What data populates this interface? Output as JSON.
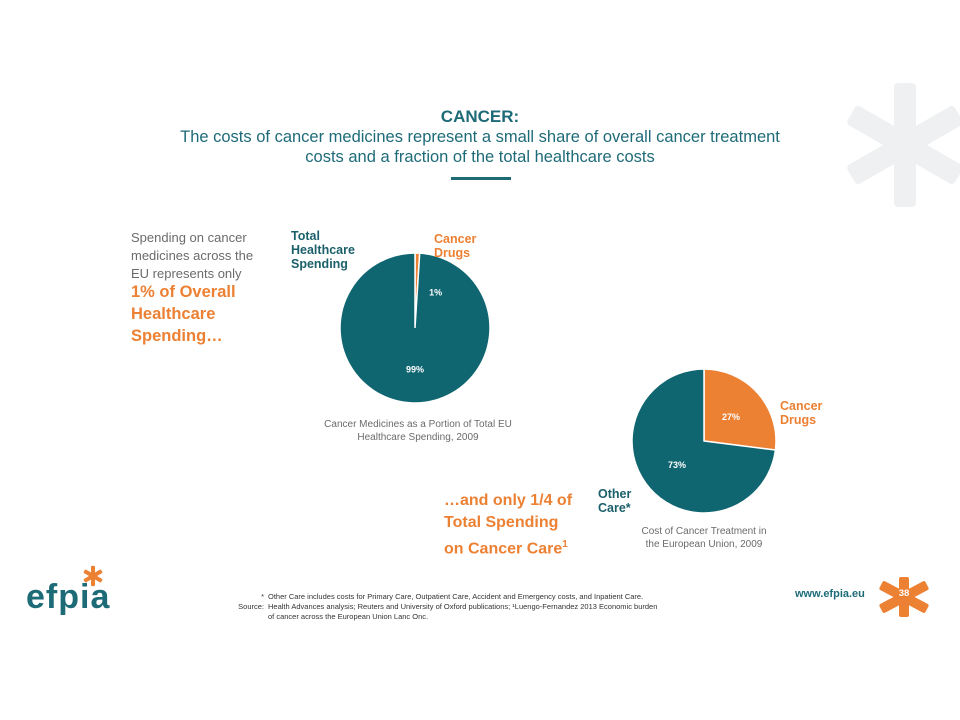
{
  "title": {
    "main": "CANCER:",
    "line1": "The costs of cancer medicines represent a small share of overall cancer treatment",
    "line2": "costs and a fraction of the total healthcare costs"
  },
  "left_text": {
    "lead1": "Spending on cancer",
    "lead2": "medicines across the",
    "lead3": "EU represents only",
    "strong1": "1% of Overall",
    "strong2": "Healthcare",
    "strong3": "Spending…"
  },
  "chart1_labels": {
    "total1": "Total",
    "total2": "Healthcare",
    "total3": "Spending",
    "drugs1": "Cancer",
    "drugs2": "Drugs"
  },
  "chart2_labels": {
    "drugs1": "Cancer",
    "drugs2": "Drugs",
    "other1": "Other",
    "other2": "Care*"
  },
  "callout2": {
    "line1": "…and only 1/4 of",
    "line2": "Total Spending",
    "line3": "on Cancer Care",
    "sup": "1"
  },
  "footnote": {
    "star_key": "*",
    "star_text": "Other Care includes costs for Primary Care, Outpatient Care, Accident and Emergency costs, and Inpatient Care.",
    "source_key": "Source:",
    "source_text1": "Health Advances analysis; Reuters and University of Oxford publications; ¹Luengo-Fernandez 2013 Economic burden",
    "source_text2": "of cancer across the European Union Lanc Onc."
  },
  "footer": {
    "logo": "efpia",
    "url": "www.efpia.eu",
    "page_number": "38"
  },
  "colors": {
    "teal": "#0f6570",
    "orange": "#ec8033",
    "title": "#1e6b78",
    "deco": "#eef0f2"
  },
  "chart_data": [
    {
      "type": "pie",
      "title": "Cancer Medicines as a Portion of Total EU Healthcare Spending, 2009",
      "title_line1": "Cancer Medicines as a Portion of Total EU",
      "title_line2": "Healthcare Spending, 2009",
      "slices": [
        {
          "label": "Cancer Drugs",
          "value": 1,
          "display": "1%",
          "color": "#ec8033"
        },
        {
          "label": "Total Healthcare Spending",
          "value": 99,
          "display": "99%",
          "color": "#0f6570"
        }
      ]
    },
    {
      "type": "pie",
      "title": "Cost of Cancer Treatment in the European Union, 2009",
      "title_line1": "Cost of Cancer Treatment in",
      "title_line2": "the European Union, 2009",
      "slices": [
        {
          "label": "Cancer Drugs",
          "value": 27,
          "display": "27%",
          "color": "#ec8033"
        },
        {
          "label": "Other Care*",
          "value": 73,
          "display": "73%",
          "color": "#0f6570"
        }
      ]
    }
  ]
}
